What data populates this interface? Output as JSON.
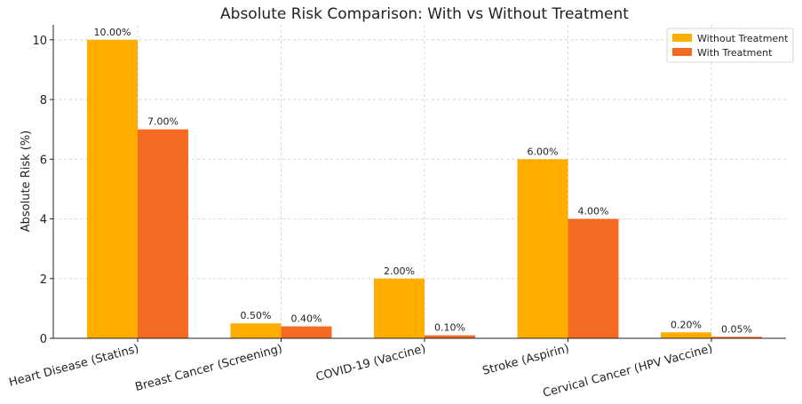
{
  "chart_data": {
    "type": "bar",
    "title": "Absolute Risk Comparison: With vs Without Treatment",
    "xlabel": "",
    "ylabel": "Absolute Risk (%)",
    "ylim": [
      0,
      10.5
    ],
    "yticks": [
      0,
      2,
      4,
      6,
      8,
      10
    ],
    "grid": true,
    "legend_position": "top-right",
    "categories": [
      "Heart Disease (Statins)",
      "Breast Cancer (Screening)",
      "COVID-19 (Vaccine)",
      "Stroke (Aspirin)",
      "Cervical Cancer (HPV Vaccine)"
    ],
    "series": [
      {
        "name": "Without Treatment",
        "color": "#ffae00",
        "values": [
          10.0,
          0.5,
          2.0,
          6.0,
          0.2
        ],
        "labels": [
          "10.00%",
          "0.50%",
          "2.00%",
          "6.00%",
          "0.20%"
        ]
      },
      {
        "name": "With Treatment",
        "color": "#f46a22",
        "values": [
          7.0,
          0.4,
          0.1,
          4.0,
          0.05
        ],
        "labels": [
          "7.00%",
          "0.40%",
          "0.10%",
          "4.00%",
          "0.05%"
        ]
      }
    ]
  }
}
